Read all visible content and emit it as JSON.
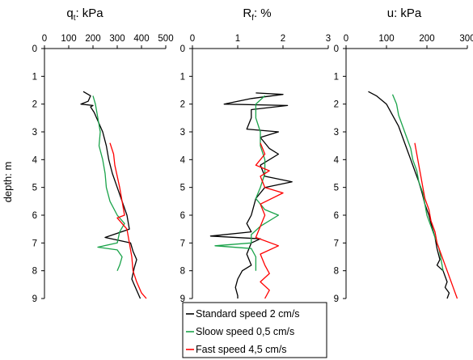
{
  "figure": {
    "ylabel": "depth: m",
    "legend": [
      "Standard speed 2 cm/s",
      "Sloow speed 0,5 cm/s",
      "Fast speed 4,5 cm/s"
    ],
    "colors": {
      "standard": "#000000",
      "slow": "#1aa34a",
      "fast": "#ff0000",
      "axis": "#000000"
    }
  },
  "chart_data": [
    {
      "type": "line",
      "title": "qt: kPa",
      "title_main": "q",
      "title_sub": "t",
      "title_rest": ": kPa",
      "xlim": [
        0,
        500
      ],
      "xticks": [
        "0",
        "100",
        "200",
        "300",
        "400",
        "500"
      ],
      "ylim": [
        0,
        9
      ],
      "yticks": [
        "0",
        "1",
        "2",
        "3",
        "4",
        "5",
        "6",
        "7",
        "8",
        "9"
      ],
      "series": [
        {
          "name": "Standard speed 2 cm/s",
          "depth": [
            1.55,
            1.7,
            1.9,
            2.0,
            2.05,
            2.1,
            2.3,
            2.6,
            3.0,
            3.5,
            4.0,
            4.5,
            5.0,
            5.5,
            6.0,
            6.5,
            6.8,
            7.0,
            7.3,
            7.6,
            7.9,
            8.3,
            8.7,
            9.0
          ],
          "values": [
            160,
            190,
            180,
            150,
            200,
            190,
            205,
            220,
            240,
            255,
            265,
            280,
            300,
            320,
            340,
            350,
            250,
            355,
            365,
            380,
            370,
            360,
            380,
            395
          ]
        },
        {
          "name": "Sloow speed 0,5 cm/s",
          "depth": [
            1.7,
            2.0,
            2.5,
            3.0,
            3.5,
            4.0,
            4.5,
            5.0,
            5.5,
            6.0,
            6.3,
            6.6,
            7.0,
            7.15,
            7.25,
            7.5,
            7.8,
            8.0
          ],
          "values": [
            200,
            210,
            220,
            230,
            225,
            240,
            250,
            255,
            270,
            300,
            330,
            310,
            300,
            220,
            300,
            320,
            310,
            300
          ]
        },
        {
          "name": "Fast speed 4,5 cm/s",
          "depth": [
            3.4,
            3.8,
            4.2,
            4.6,
            5.0,
            5.5,
            6.0,
            6.1,
            6.5,
            7.0,
            7.5,
            8.0,
            8.4,
            8.8,
            9.0
          ],
          "values": [
            270,
            285,
            290,
            300,
            310,
            320,
            330,
            300,
            340,
            350,
            360,
            365,
            380,
            400,
            420
          ]
        }
      ]
    },
    {
      "type": "line",
      "title": "Rf: %",
      "title_main": "R",
      "title_sub": "f",
      "title_rest": ": %",
      "xlim": [
        0,
        3
      ],
      "xticks": [
        "0",
        "1",
        "2",
        "3"
      ],
      "ylim": [
        0,
        9
      ],
      "yticks": [
        "0",
        "1",
        "2",
        "3",
        "4",
        "5",
        "6",
        "7",
        "8",
        "9"
      ],
      "series": [
        {
          "name": "Standard speed 2 cm/s",
          "depth": [
            1.6,
            1.65,
            1.8,
            2.0,
            2.05,
            2.2,
            2.5,
            2.9,
            3.0,
            3.2,
            3.6,
            3.8,
            4.2,
            4.6,
            4.8,
            5.0,
            5.4,
            6.0,
            6.3,
            6.6,
            6.75,
            6.85,
            7.0,
            7.4,
            7.8,
            8.0,
            8.3,
            8.6,
            8.9,
            9.0
          ],
          "values": [
            1.4,
            2.0,
            1.3,
            0.7,
            2.1,
            1.3,
            1.3,
            1.2,
            1.9,
            1.5,
            1.7,
            1.9,
            1.5,
            1.6,
            2.2,
            1.6,
            1.4,
            1.3,
            1.2,
            1.3,
            0.4,
            1.5,
            1.3,
            1.2,
            1.3,
            1.1,
            1.0,
            0.95,
            1.0,
            1.0
          ]
        },
        {
          "name": "Sloow speed 0,5 cm/s",
          "depth": [
            1.7,
            2.0,
            2.5,
            3.0,
            3.5,
            4.0,
            4.5,
            5.0,
            5.4,
            5.8,
            6.0,
            6.4,
            6.7,
            7.0,
            7.1,
            7.2,
            7.5,
            7.8,
            8.0
          ],
          "values": [
            1.6,
            1.4,
            1.4,
            1.5,
            1.5,
            1.6,
            1.6,
            1.5,
            1.4,
            1.6,
            1.9,
            1.5,
            1.3,
            1.3,
            0.5,
            1.3,
            1.4,
            1.4,
            1.4
          ]
        },
        {
          "name": "Fast speed 4,5 cm/s",
          "depth": [
            3.4,
            3.8,
            4.2,
            4.4,
            4.6,
            5.0,
            5.2,
            5.6,
            6.0,
            6.4,
            6.8,
            7.1,
            7.4,
            7.8,
            8.1,
            8.4,
            8.7,
            9.0
          ],
          "values": [
            1.5,
            1.6,
            1.4,
            1.7,
            1.5,
            1.6,
            2.0,
            1.5,
            1.6,
            1.5,
            1.4,
            1.9,
            1.5,
            1.6,
            1.7,
            1.5,
            1.7,
            1.6
          ]
        }
      ]
    },
    {
      "type": "line",
      "title": "u: kPa",
      "title_main": "u: kPa",
      "title_sub": "",
      "title_rest": "",
      "xlim": [
        0,
        300
      ],
      "xticks": [
        "0",
        "100",
        "200",
        "300"
      ],
      "ylim": [
        0,
        9
      ],
      "yticks": [
        "0",
        "1",
        "2",
        "3",
        "4",
        "5",
        "6",
        "7",
        "8",
        "9"
      ],
      "series": [
        {
          "name": "Standard speed 2 cm/s",
          "depth": [
            1.55,
            1.7,
            2.0,
            2.4,
            2.8,
            3.2,
            3.6,
            4.0,
            4.4,
            4.8,
            5.2,
            5.6,
            6.0,
            6.4,
            6.8,
            7.2,
            7.6,
            7.8,
            8.0,
            8.4,
            8.6,
            8.8,
            9.0
          ],
          "values": [
            55,
            75,
            100,
            115,
            130,
            140,
            150,
            160,
            170,
            180,
            188,
            195,
            205,
            212,
            220,
            225,
            232,
            225,
            240,
            250,
            245,
            255,
            250
          ]
        },
        {
          "name": "Sloow speed 0,5 cm/s",
          "depth": [
            1.65,
            2.0,
            2.4,
            2.8,
            3.2,
            3.6,
            4.0,
            4.4,
            4.8,
            5.2,
            5.6,
            6.0,
            6.4,
            6.8,
            7.2,
            7.6,
            8.0
          ],
          "values": [
            115,
            125,
            130,
            140,
            150,
            160,
            165,
            175,
            180,
            190,
            195,
            200,
            210,
            220,
            230,
            235,
            240
          ]
        },
        {
          "name": "Fast speed 4,5 cm/s",
          "depth": [
            3.4,
            3.8,
            4.2,
            4.6,
            5.0,
            5.4,
            5.8,
            6.2,
            6.6,
            7.0,
            7.4,
            7.8,
            8.2,
            8.6,
            9.0
          ],
          "values": [
            170,
            175,
            180,
            185,
            190,
            195,
            205,
            210,
            220,
            225,
            235,
            245,
            255,
            265,
            275
          ]
        }
      ]
    }
  ]
}
